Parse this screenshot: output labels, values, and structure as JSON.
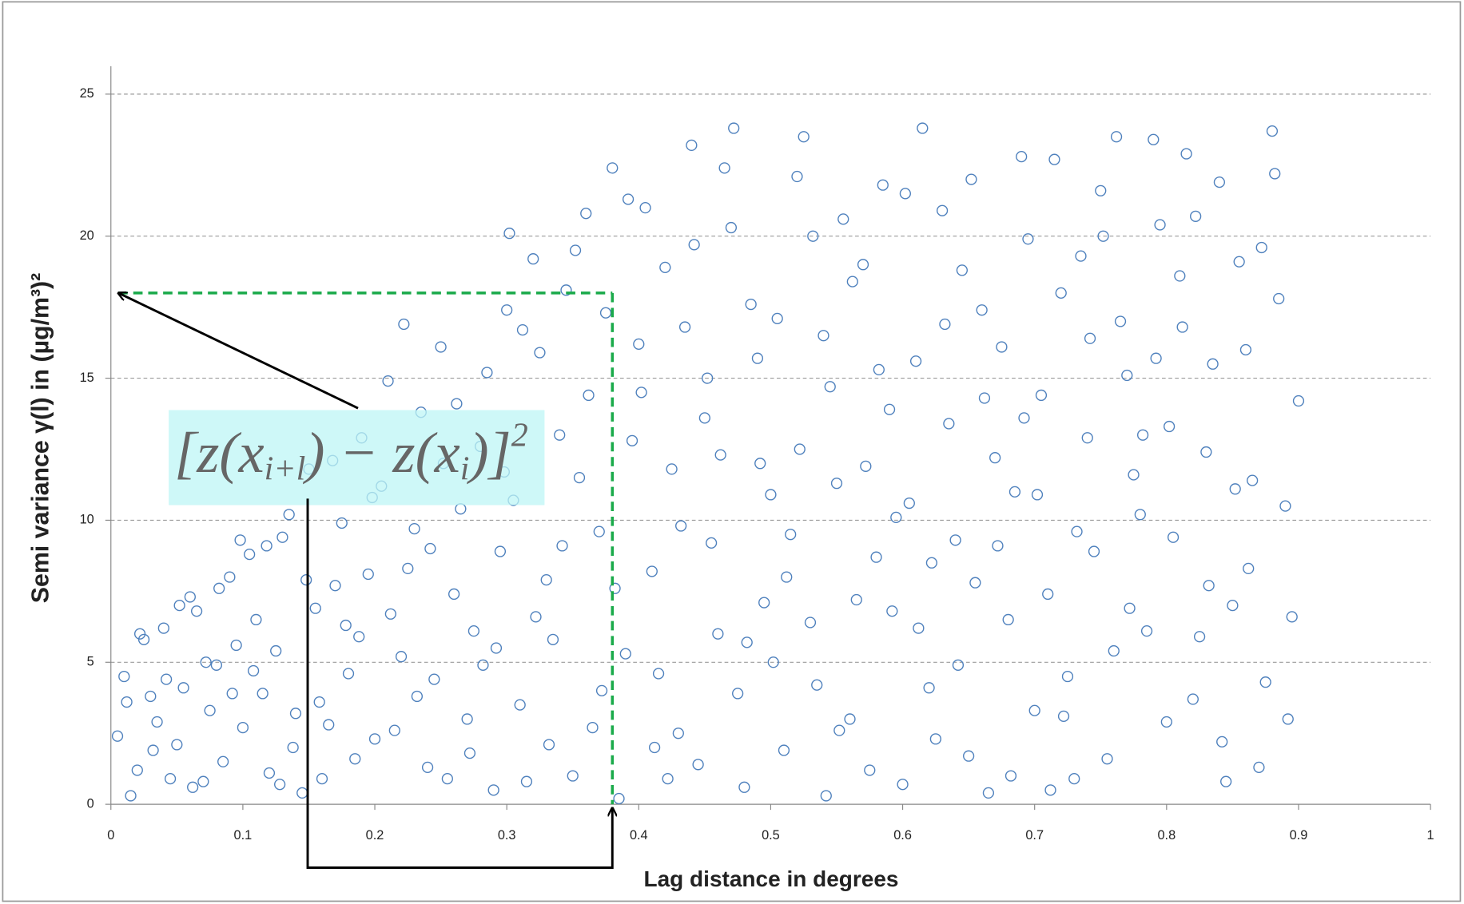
{
  "chart_data": {
    "type": "scatter",
    "x_label": "Lag distance in degrees",
    "y_label": "Semi variance γ(l) in (µg/m³)²",
    "color": "#4f81bd",
    "xlim": [
      0,
      1
    ],
    "ylim": [
      0,
      25
    ],
    "xticks": [
      0,
      0.1,
      0.2,
      0.3,
      0.4,
      0.5,
      0.6,
      0.7,
      0.8,
      0.9,
      1
    ],
    "yticks": [
      0,
      5,
      10,
      15,
      20,
      25
    ],
    "grid": true,
    "annotation": {
      "formula": [
        "[z(x",
        "i+l",
        ") − z(x",
        "i",
        ")]",
        "2"
      ],
      "guide_x": 0.38,
      "guide_y": 18,
      "guide_color": "#1aaa4a"
    },
    "x": [
      0.01,
      0.02,
      0.03,
      0.04,
      0.05,
      0.06,
      0.07,
      0.08,
      0.09,
      0.1,
      0.015,
      0.025,
      0.035,
      0.045,
      0.055,
      0.065,
      0.075,
      0.085,
      0.095,
      0.005,
      0.012,
      0.032,
      0.052,
      0.072,
      0.092,
      0.042,
      0.062,
      0.082,
      0.022,
      0.098,
      0.11,
      0.12,
      0.13,
      0.14,
      0.15,
      0.16,
      0.17,
      0.18,
      0.19,
      0.2,
      0.105,
      0.115,
      0.125,
      0.135,
      0.145,
      0.155,
      0.165,
      0.175,
      0.185,
      0.195,
      0.108,
      0.128,
      0.148,
      0.168,
      0.188,
      0.138,
      0.158,
      0.178,
      0.198,
      0.118,
      0.21,
      0.22,
      0.23,
      0.24,
      0.25,
      0.26,
      0.27,
      0.28,
      0.29,
      0.3,
      0.205,
      0.215,
      0.225,
      0.235,
      0.245,
      0.255,
      0.265,
      0.275,
      0.285,
      0.295,
      0.212,
      0.232,
      0.252,
      0.272,
      0.292,
      0.222,
      0.242,
      0.262,
      0.282,
      0.298,
      0.31,
      0.32,
      0.33,
      0.34,
      0.35,
      0.36,
      0.37,
      0.38,
      0.39,
      0.4,
      0.305,
      0.315,
      0.325,
      0.335,
      0.345,
      0.355,
      0.365,
      0.375,
      0.385,
      0.395,
      0.302,
      0.322,
      0.342,
      0.362,
      0.382,
      0.312,
      0.332,
      0.352,
      0.372,
      0.392,
      0.41,
      0.42,
      0.43,
      0.44,
      0.45,
      0.46,
      0.47,
      0.48,
      0.49,
      0.5,
      0.405,
      0.415,
      0.425,
      0.435,
      0.445,
      0.455,
      0.465,
      0.475,
      0.485,
      0.495,
      0.402,
      0.422,
      0.442,
      0.462,
      0.482,
      0.412,
      0.432,
      0.452,
      0.472,
      0.492,
      0.51,
      0.52,
      0.53,
      0.54,
      0.55,
      0.56,
      0.57,
      0.58,
      0.59,
      0.6,
      0.505,
      0.515,
      0.525,
      0.535,
      0.545,
      0.555,
      0.565,
      0.575,
      0.585,
      0.595,
      0.502,
      0.522,
      0.542,
      0.562,
      0.582,
      0.512,
      0.532,
      0.552,
      0.572,
      0.592,
      0.61,
      0.62,
      0.63,
      0.64,
      0.65,
      0.66,
      0.67,
      0.68,
      0.69,
      0.7,
      0.605,
      0.615,
      0.625,
      0.635,
      0.645,
      0.655,
      0.665,
      0.675,
      0.685,
      0.695,
      0.602,
      0.622,
      0.642,
      0.662,
      0.682,
      0.612,
      0.632,
      0.652,
      0.672,
      0.692,
      0.71,
      0.72,
      0.73,
      0.74,
      0.75,
      0.76,
      0.77,
      0.78,
      0.79,
      0.8,
      0.705,
      0.715,
      0.725,
      0.735,
      0.745,
      0.755,
      0.765,
      0.775,
      0.785,
      0.795,
      0.702,
      0.722,
      0.742,
      0.762,
      0.782,
      0.712,
      0.732,
      0.752,
      0.772,
      0.792,
      0.81,
      0.82,
      0.83,
      0.84,
      0.85,
      0.86,
      0.87,
      0.88,
      0.89,
      0.9,
      0.805,
      0.815,
      0.825,
      0.835,
      0.845,
      0.855,
      0.865,
      0.875,
      0.885,
      0.895,
      0.802,
      0.822,
      0.842,
      0.862,
      0.882,
      0.812,
      0.832,
      0.852,
      0.872,
      0.892
    ],
    "y": [
      4.5,
      1.2,
      3.8,
      6.2,
      2.1,
      7.3,
      0.8,
      4.9,
      8.0,
      2.7,
      0.3,
      5.8,
      2.9,
      0.9,
      4.1,
      6.8,
      3.3,
      1.5,
      5.6,
      2.4,
      3.6,
      1.9,
      7.0,
      5.0,
      3.9,
      4.4,
      0.6,
      7.6,
      6.0,
      9.3,
      6.5,
      1.1,
      9.4,
      3.2,
      11.8,
      0.9,
      7.7,
      4.6,
      12.9,
      2.3,
      8.8,
      3.9,
      5.4,
      10.2,
      0.4,
      6.9,
      2.8,
      9.9,
      1.6,
      8.1,
      4.7,
      0.7,
      7.9,
      12.1,
      5.9,
      2.0,
      3.6,
      6.3,
      10.8,
      9.1,
      14.9,
      5.2,
      9.7,
      1.3,
      16.1,
      7.4,
      3.0,
      12.6,
      0.5,
      17.4,
      11.2,
      2.6,
      8.3,
      13.8,
      4.4,
      0.9,
      10.4,
      6.1,
      15.2,
      8.9,
      6.7,
      3.8,
      12.0,
      1.8,
      5.5,
      16.9,
      9.0,
      14.1,
      4.9,
      11.7,
      3.5,
      19.2,
      7.9,
      13.0,
      1.0,
      20.8,
      9.6,
      22.4,
      5.3,
      16.2,
      10.7,
      0.8,
      15.9,
      5.8,
      18.1,
      11.5,
      2.7,
      17.3,
      0.2,
      12.8,
      20.1,
      6.6,
      9.1,
      14.4,
      7.6,
      16.7,
      2.1,
      19.5,
      4.0,
      21.3,
      8.2,
      18.9,
      2.5,
      23.2,
      13.6,
      6.0,
      20.3,
      0.6,
      15.7,
      10.9,
      21.0,
      4.6,
      11.8,
      16.8,
      1.4,
      9.2,
      22.4,
      3.9,
      17.6,
      7.1,
      14.5,
      0.9,
      19.7,
      12.3,
      5.7,
      2.0,
      9.8,
      15.0,
      23.8,
      12.0,
      1.9,
      22.1,
      6.4,
      16.5,
      11.3,
      3.0,
      19.0,
      8.7,
      13.9,
      0.7,
      17.1,
      9.5,
      23.5,
      4.2,
      14.7,
      20.6,
      7.2,
      1.2,
      21.8,
      10.1,
      5.0,
      12.5,
      0.3,
      18.4,
      15.3,
      8.0,
      20.0,
      2.6,
      11.9,
      6.8,
      15.6,
      4.1,
      20.9,
      9.3,
      1.7,
      17.4,
      12.2,
      6.5,
      22.8,
      3.3,
      10.6,
      23.8,
      2.3,
      13.4,
      18.8,
      7.8,
      0.4,
      16.1,
      11.0,
      19.9,
      21.5,
      8.5,
      4.9,
      14.3,
      1.0,
      6.2,
      16.9,
      22.0,
      9.1,
      13.6,
      7.4,
      18.0,
      0.9,
      12.9,
      21.6,
      5.4,
      15.1,
      10.2,
      23.4,
      2.9,
      14.4,
      22.7,
      4.5,
      19.3,
      8.9,
      1.6,
      17.0,
      11.6,
      6.1,
      20.4,
      10.9,
      3.1,
      16.4,
      23.5,
      13.0,
      0.5,
      9.6,
      20.0,
      6.9,
      15.7,
      18.6,
      3.7,
      12.4,
      21.9,
      7.0,
      16.0,
      1.3,
      23.7,
      10.5,
      14.2,
      9.4,
      22.9,
      5.9,
      15.5,
      0.8,
      19.1,
      11.4,
      4.3,
      17.8,
      6.6,
      13.3,
      20.7,
      2.2,
      8.3,
      22.2,
      16.8,
      7.7,
      11.1,
      19.6,
      3.0
    ]
  }
}
